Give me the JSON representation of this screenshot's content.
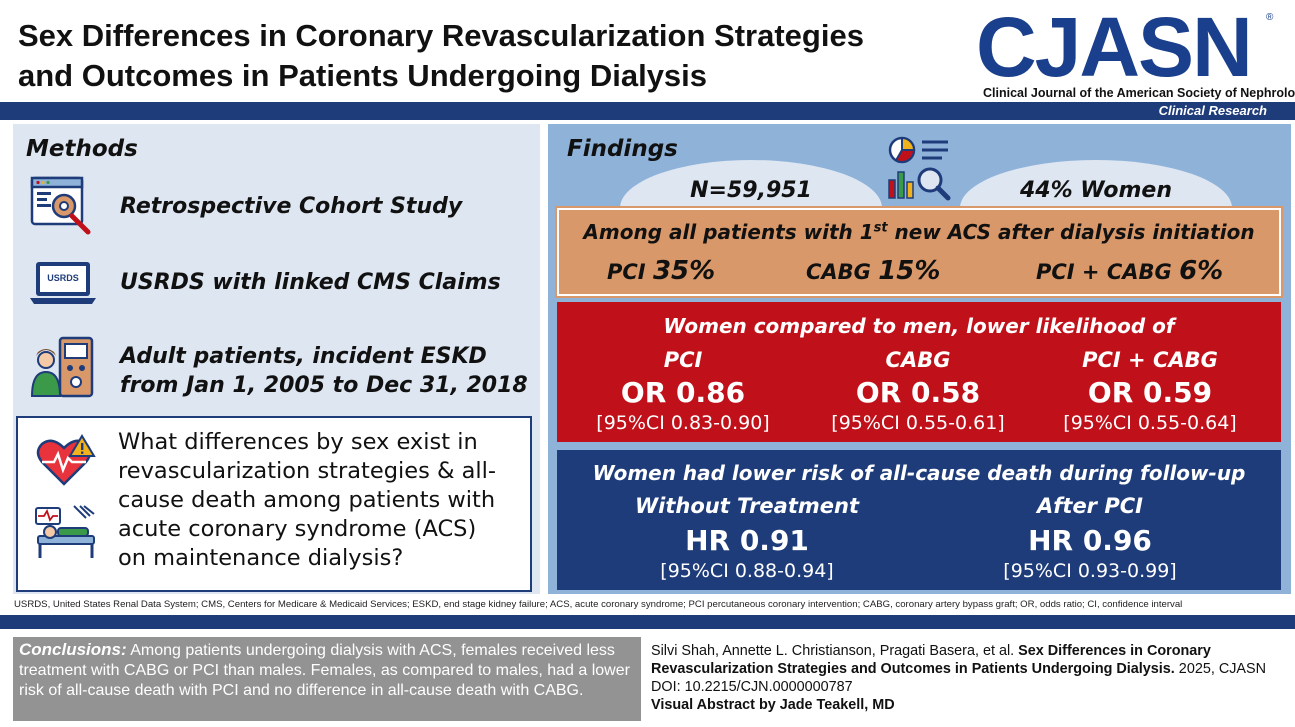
{
  "header": {
    "title_line1": "Sex Differences in Coronary Revascularization Strategies",
    "title_line2": "and Outcomes in Patients Undergoing Dialysis",
    "logo": "CJASN",
    "logo_mark": "®",
    "journal_name": "Clinical Journal of the American Society of Nephrology",
    "category": "Clinical Research"
  },
  "methods": {
    "title": "Methods",
    "items": [
      {
        "text": "Retrospective Cohort Study",
        "icon": "code-settings-icon"
      },
      {
        "text": "USRDS with linked CMS Claims",
        "icon": "laptop-icon",
        "icon_label": "USRDS"
      },
      {
        "text_line1": "Adult patients, incident ESKD",
        "text_line2": "from Jan 1, 2005 to Dec 31, 2018",
        "icon": "dialysis-patient-icon"
      }
    ],
    "question_lines": [
      "What differences by sex exist in",
      "revascularization strategies & all-",
      "cause death among patients with",
      "acute coronary syndrome (ACS)",
      "on maintenance dialysis?"
    ]
  },
  "findings": {
    "title": "Findings",
    "n_label": "N=59,951",
    "women_label": "44% Women",
    "all_patients": {
      "heading_pre": "Among all patients with 1",
      "heading_sup": "st",
      "heading_post": " new ACS after dialysis initiation",
      "items": [
        {
          "label": "PCI ",
          "value": "35%"
        },
        {
          "label": "CABG ",
          "value": "15%"
        },
        {
          "label": "PCI + CABG ",
          "value": "6%"
        }
      ]
    },
    "women_vs_men": {
      "heading": "Women compared to men, lower likelihood of",
      "items": [
        {
          "label": "PCI",
          "or": "OR 0.86",
          "ci": "[95%CI 0.83-0.90]"
        },
        {
          "label": "CABG",
          "or": "OR 0.58",
          "ci": "[95%CI 0.55-0.61]"
        },
        {
          "label": "PCI + CABG",
          "or": "OR 0.59",
          "ci": "[95%CI 0.55-0.64]"
        }
      ]
    },
    "death": {
      "heading": "Women had lower risk of all-cause death during follow-up",
      "items": [
        {
          "label": "Without Treatment",
          "hr": "HR 0.91",
          "ci": "[95%CI 0.88-0.94]"
        },
        {
          "label": "After PCI",
          "hr": "HR 0.96",
          "ci": "[95%CI 0.93-0.99]"
        }
      ]
    }
  },
  "abbreviations": "USRDS, United States Renal Data System; CMS, Centers for Medicare & Medicaid Services; ESKD, end stage kidney failure; ACS, acute coronary syndrome; PCI percutaneous coronary intervention; CABG, coronary artery bypass graft; OR, odds ratio; CI, confidence interval",
  "conclusions": {
    "label": "Conclusions:",
    "text": " Among patients undergoing dialysis with ACS, females received less treatment with CABG or PCI than males. Females, as compared to males, had a lower risk of all-cause death with PCI and no difference in all-cause death with CABG."
  },
  "citation": {
    "authors": "Silvi Shah, Annette L. Christianson, Pragati Basera, et al. ",
    "title": "Sex Differences in Coronary Revascularization Strategies and Outcomes in Patients Undergoing Dialysis.",
    "rest": " 2025, CJASN DOI: 10.2215/CJN.0000000787",
    "credit": "Visual Abstract by Jade Teakell, MD"
  },
  "colors": {
    "navy": "#1f3c7a",
    "logo_blue": "#1a3f8c",
    "orange": "#d9986a",
    "red": "#c0111a",
    "findings_bg": "#8fb2d9",
    "methods_bg": "#dde6f1",
    "gray": "#939393"
  }
}
